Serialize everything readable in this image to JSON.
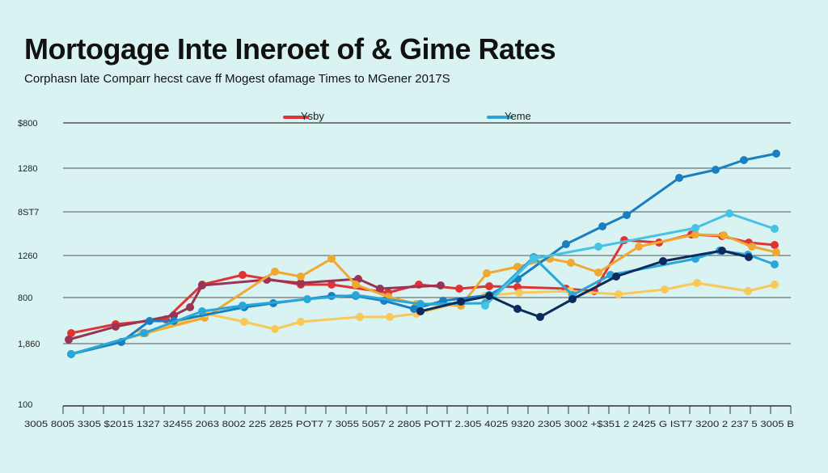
{
  "chart_data": {
    "type": "line",
    "title": "Mortogage Inte Ineroet of & Gime Rates",
    "subtitle": "Corphasn late Comparr hecst cave ff Mogest ofamage Times to MGener 2017S",
    "y_tick_labels": [
      "$800",
      "1280",
      "8ST7",
      "1260",
      "800",
      "1,860",
      "100"
    ],
    "x_tick_labels": "3005 8005 3305 $2015 1327 32455 2063 8002 225 2825 POT7 7 3055 5057 2 2805 POTT 2.305 4025 9320 2305 3002 +$351 2 2425 G IST7 3200 2 237 5 3005 B",
    "legend": [
      {
        "label": "Ysby",
        "color": "#e03434"
      },
      {
        "label": "Yeme",
        "color": "#2aa6d8"
      }
    ],
    "grid": "horizontal",
    "series": [
      {
        "color": "#e03434",
        "values": [
          [
            88,
            412
          ],
          [
            143,
            401
          ],
          [
            205,
            395
          ],
          [
            250,
            352
          ],
          [
            300,
            340
          ],
          [
            372,
            352
          ],
          [
            410,
            352
          ],
          [
            480,
            362
          ],
          [
            518,
            352
          ],
          [
            568,
            357
          ],
          [
            605,
            354
          ],
          [
            640,
            355
          ],
          [
            700,
            357
          ],
          [
            735,
            360
          ],
          [
            772,
            297
          ],
          [
            815,
            300
          ],
          [
            855,
            290
          ],
          [
            893,
            292
          ],
          [
            926,
            300
          ],
          [
            958,
            303
          ]
        ]
      },
      {
        "color": "#9a3454",
        "values": [
          [
            85,
            420
          ],
          [
            143,
            404
          ],
          [
            215,
            390
          ],
          [
            235,
            380
          ],
          [
            250,
            353
          ],
          [
            330,
            346
          ],
          [
            372,
            350
          ],
          [
            443,
            345
          ],
          [
            470,
            357
          ],
          [
            545,
            353
          ]
        ]
      },
      {
        "color": "#f0a830",
        "values": [
          [
            88,
            438
          ],
          [
            180,
            412
          ],
          [
            253,
            393
          ],
          [
            340,
            336
          ],
          [
            372,
            342
          ],
          [
            410,
            320
          ],
          [
            440,
            352
          ],
          [
            480,
            367
          ],
          [
            515,
            376
          ],
          [
            570,
            378
          ],
          [
            602,
            338
          ],
          [
            640,
            330
          ],
          [
            680,
            320
          ],
          [
            706,
            325
          ],
          [
            740,
            337
          ],
          [
            790,
            305
          ],
          [
            860,
            290
          ],
          [
            895,
            291
          ],
          [
            930,
            305
          ],
          [
            960,
            312
          ]
        ]
      },
      {
        "color": "#f8c858",
        "values": [
          [
            175,
            412
          ],
          [
            255,
            388
          ],
          [
            302,
            398
          ],
          [
            340,
            407
          ],
          [
            372,
            398
          ],
          [
            445,
            392
          ],
          [
            482,
            392
          ],
          [
            515,
            388
          ],
          [
            600,
            366
          ],
          [
            642,
            362
          ],
          [
            705,
            360
          ],
          [
            765,
            364
          ],
          [
            822,
            358
          ],
          [
            862,
            350
          ],
          [
            925,
            360
          ],
          [
            958,
            352
          ]
        ]
      },
      {
        "color": "#1a7fc0",
        "values": [
          [
            88,
            438
          ],
          [
            150,
            423
          ],
          [
            185,
            397
          ],
          [
            215,
            397
          ],
          [
            302,
            380
          ],
          [
            338,
            375
          ],
          [
            410,
            366
          ],
          [
            440,
            366
          ],
          [
            475,
            372
          ],
          [
            512,
            382
          ],
          [
            548,
            372
          ],
          [
            605,
            365
          ],
          [
            640,
            345
          ],
          [
            700,
            302
          ],
          [
            745,
            280
          ],
          [
            775,
            266
          ],
          [
            840,
            220
          ],
          [
            885,
            210
          ],
          [
            920,
            198
          ],
          [
            960,
            190
          ]
        ]
      },
      {
        "color": "#2aa6d8",
        "values": [
          [
            88,
            438
          ],
          [
            178,
            412
          ],
          [
            250,
            385
          ],
          [
            300,
            378
          ],
          [
            380,
            370
          ],
          [
            440,
            365
          ],
          [
            520,
            376
          ],
          [
            600,
            375
          ],
          [
            660,
            318
          ],
          [
            708,
            365
          ],
          [
            755,
            340
          ],
          [
            860,
            320
          ],
          [
            890,
            310
          ],
          [
            925,
            315
          ],
          [
            958,
            327
          ]
        ]
      },
      {
        "color": "#46c2e4",
        "values": [
          [
            600,
            378
          ],
          [
            660,
            320
          ],
          [
            740,
            305
          ],
          [
            860,
            282
          ],
          [
            902,
            264
          ],
          [
            958,
            283
          ]
        ]
      },
      {
        "color": "#0c2a5e",
        "values": [
          [
            520,
            385
          ],
          [
            570,
            373
          ],
          [
            605,
            366
          ],
          [
            640,
            382
          ],
          [
            668,
            392
          ],
          [
            708,
            370
          ],
          [
            762,
            342
          ],
          [
            820,
            323
          ],
          [
            893,
            310
          ],
          [
            926,
            318
          ]
        ]
      }
    ]
  }
}
